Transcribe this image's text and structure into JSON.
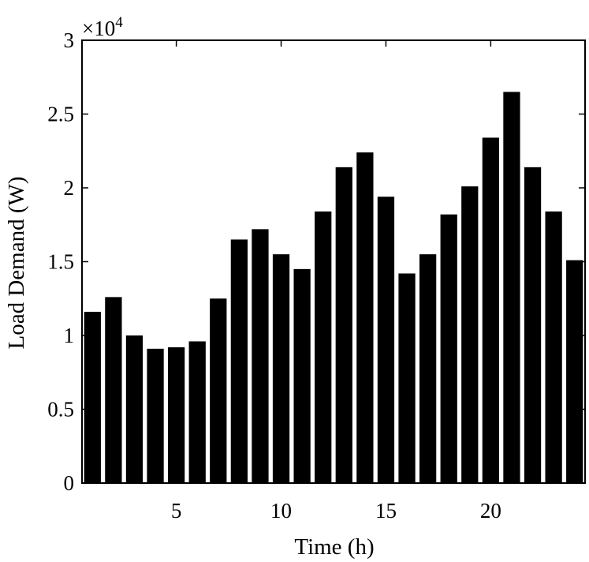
{
  "chart_data": {
    "type": "bar",
    "xlabel": "Time (h)",
    "ylabel": "Load Demand (W)",
    "y_multiplier_label": "×10",
    "y_multiplier_exponent": "4",
    "xlim": [
      0.5,
      24.5
    ],
    "ylim": [
      0,
      3
    ],
    "x_ticks": [
      5,
      10,
      15,
      20
    ],
    "y_ticks": [
      {
        "value": 0,
        "label": "0"
      },
      {
        "value": 0.5,
        "label": "0.5"
      },
      {
        "value": 1,
        "label": "1"
      },
      {
        "value": 1.5,
        "label": "1.5"
      },
      {
        "value": 2,
        "label": "2"
      },
      {
        "value": 2.5,
        "label": "2.5"
      },
      {
        "value": 3,
        "label": "3"
      }
    ],
    "x": [
      1,
      2,
      3,
      4,
      5,
      6,
      7,
      8,
      9,
      10,
      11,
      12,
      13,
      14,
      15,
      16,
      17,
      18,
      19,
      20,
      21,
      22,
      23,
      24
    ],
    "values": [
      11600,
      12600,
      10000,
      9100,
      9200,
      9600,
      12500,
      16500,
      17200,
      15500,
      14500,
      18400,
      21400,
      22400,
      19400,
      14200,
      15500,
      18200,
      20100,
      23400,
      26500,
      21400,
      18400,
      15100
    ],
    "bar_color": "#000000",
    "grid": false
  }
}
